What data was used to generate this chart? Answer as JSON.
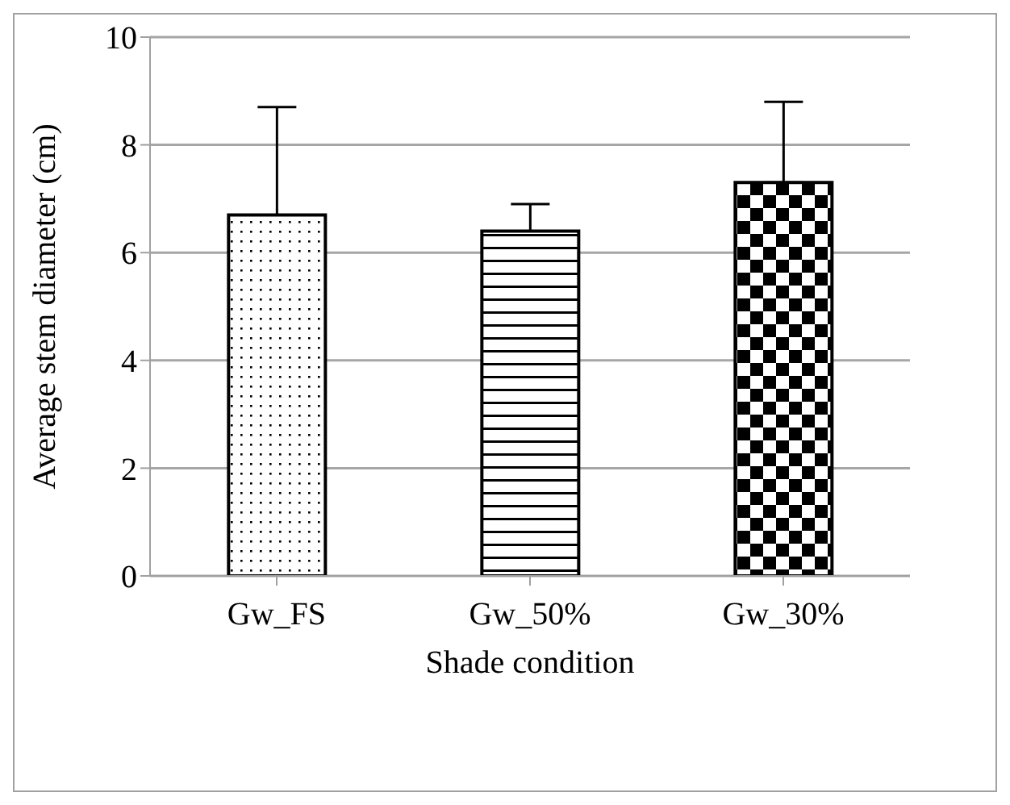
{
  "chart_data": {
    "type": "bar",
    "xlabel": "Shade condition",
    "ylabel": "Average stem diameter (cm)",
    "categories": [
      "Gw_FS",
      "Gw_50%",
      "Gw_30%"
    ],
    "values": [
      6.7,
      6.4,
      7.3
    ],
    "colors": [
      "#000000",
      "#000000",
      "#000000"
    ],
    "errors": [
      [
        6.7,
        8.7
      ],
      [
        6.4,
        6.9
      ],
      [
        7.3,
        8.8
      ]
    ],
    "ylim": [
      0,
      10
    ],
    "yticks": [
      0,
      2,
      4,
      6,
      8,
      10
    ],
    "grid": "y"
  }
}
